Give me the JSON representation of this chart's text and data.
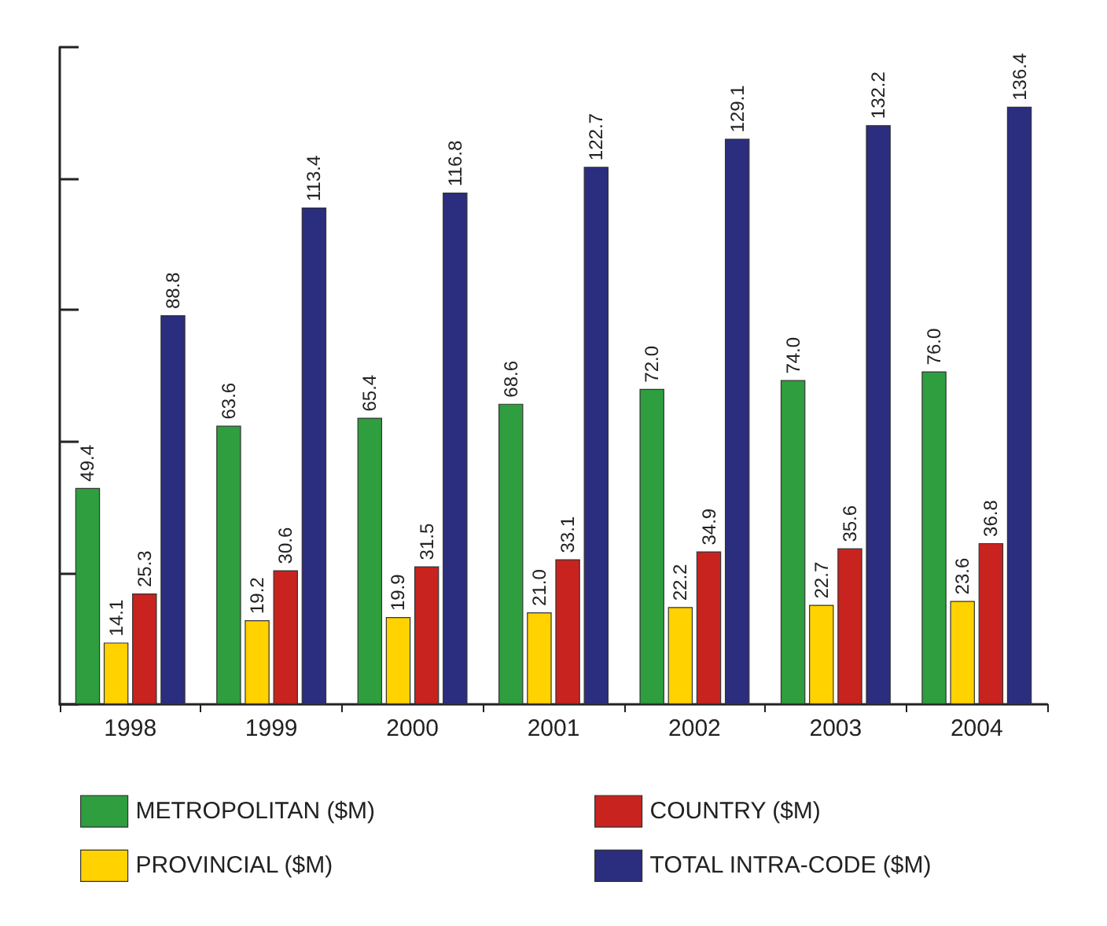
{
  "chart_data": {
    "type": "bar",
    "categories": [
      "1998",
      "1999",
      "2000",
      "2001",
      "2002",
      "2003",
      "2004"
    ],
    "series": [
      {
        "name": "METROPOLITAN ($M)",
        "color": "#2e9e3e",
        "values": [
          49.4,
          63.6,
          65.4,
          68.6,
          72.0,
          74.0,
          76.0
        ],
        "value_labels": [
          "49.4",
          "63.6",
          "65.4",
          "68.6",
          "72.0",
          "74.0",
          "76.0"
        ]
      },
      {
        "name": "PROVINCIAL ($M)",
        "color": "#ffd200",
        "values": [
          14.1,
          19.2,
          19.9,
          21.0,
          22.2,
          22.7,
          23.6
        ],
        "value_labels": [
          "14.1",
          "19.2",
          "19.9",
          "21.0",
          "22.2",
          "22.7",
          "23.6"
        ]
      },
      {
        "name": "COUNTRY ($M)",
        "color": "#c8231e",
        "values": [
          25.3,
          30.6,
          31.5,
          33.1,
          34.9,
          35.6,
          36.8
        ],
        "value_labels": [
          "25.3",
          "30.6",
          "31.5",
          "33.1",
          "34.9",
          "35.6",
          "36.8"
        ]
      },
      {
        "name": "TOTAL INTRA-CODE ($M)",
        "color": "#2b2d7f",
        "values": [
          88.8,
          113.4,
          116.8,
          122.7,
          129.1,
          132.2,
          136.4
        ],
        "value_labels": [
          "88.8",
          "113.4",
          "116.8",
          "122.7",
          "129.1",
          "132.2",
          "136.4"
        ]
      }
    ],
    "ylim": [
      0,
      150
    ],
    "yticks": [
      {
        "value": 0,
        "label": null
      },
      {
        "value": 30,
        "label": null
      },
      {
        "value": 60,
        "label": null
      },
      {
        "value": 90,
        "label": null
      },
      {
        "value": 120,
        "label": null
      },
      {
        "value": 150,
        "label": null
      }
    ],
    "tick_labels": "x",
    "grid": false,
    "legend": "bottom"
  }
}
